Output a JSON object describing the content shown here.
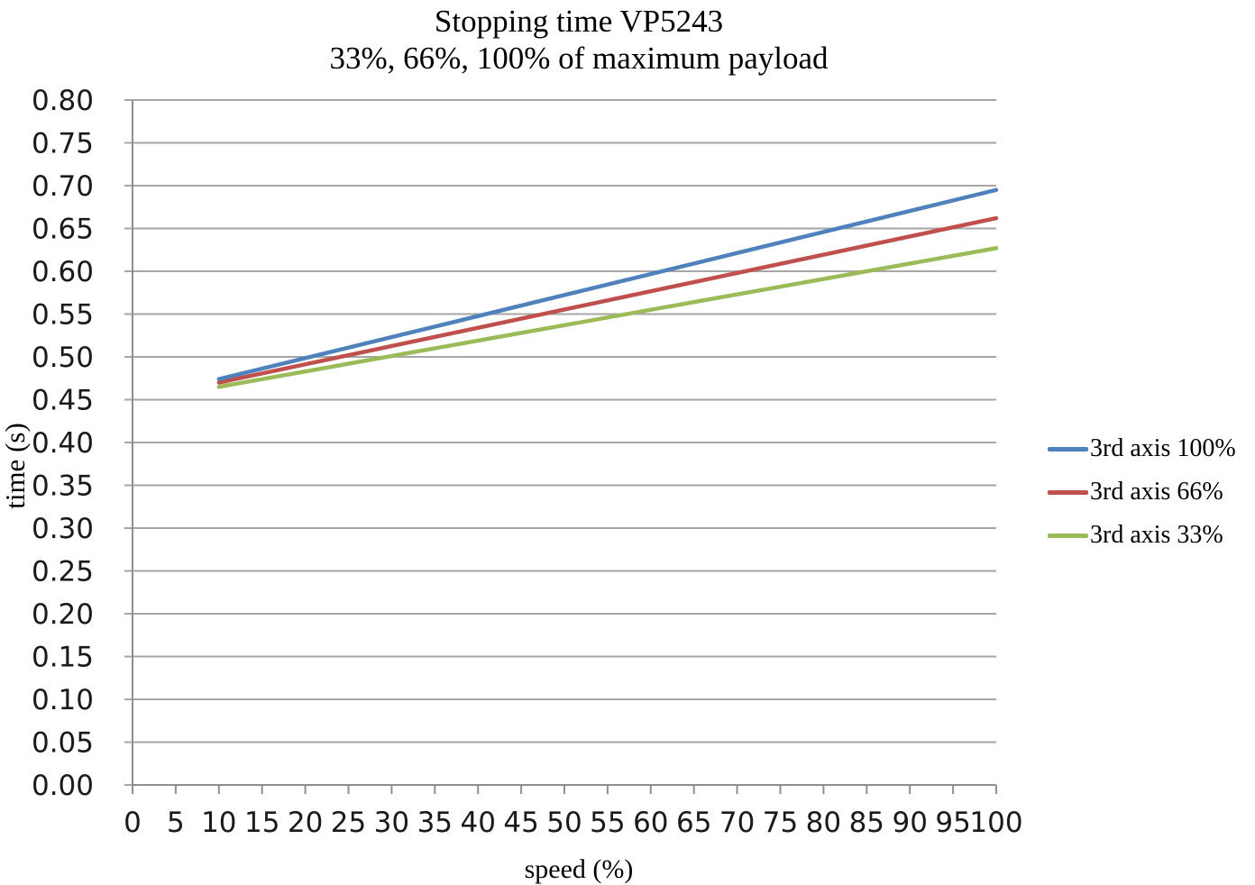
{
  "chart_data": {
    "type": "line",
    "title": "Stopping time VP5243",
    "subtitle": "33%, 66%, 100% of maximum payload",
    "xlabel": "speed (%)",
    "ylabel": "time (s)",
    "xlim": [
      0,
      100
    ],
    "ylim": [
      0.0,
      0.8
    ],
    "x_ticks": [
      0,
      5,
      10,
      15,
      20,
      25,
      30,
      35,
      40,
      45,
      50,
      55,
      60,
      65,
      70,
      75,
      80,
      85,
      90,
      95,
      100
    ],
    "y_tick_labels": [
      "0.00",
      "0.05",
      "0.10",
      "0.15",
      "0.20",
      "0.25",
      "0.30",
      "0.35",
      "0.40",
      "0.45",
      "0.50",
      "0.55",
      "0.60",
      "0.65",
      "0.70",
      "0.75",
      "0.80"
    ],
    "grid": "horizontal",
    "legend_position": "right",
    "colors": {
      "gridline": "#a6a6a6",
      "axis": "#8f8f8f",
      "tick_text": "#1a1a1a",
      "title_text": "#000000"
    },
    "series": [
      {
        "name": "3rd axis 100%",
        "color": "#4F81BD",
        "x": [
          10,
          100
        ],
        "y": [
          0.474,
          0.695
        ]
      },
      {
        "name": "3rd axis 66%",
        "color": "#C0504D",
        "x": [
          10,
          100
        ],
        "y": [
          0.47,
          0.662
        ]
      },
      {
        "name": "3rd axis 33%",
        "color": "#9BBB59",
        "x": [
          10,
          100
        ],
        "y": [
          0.465,
          0.627
        ]
      }
    ]
  }
}
